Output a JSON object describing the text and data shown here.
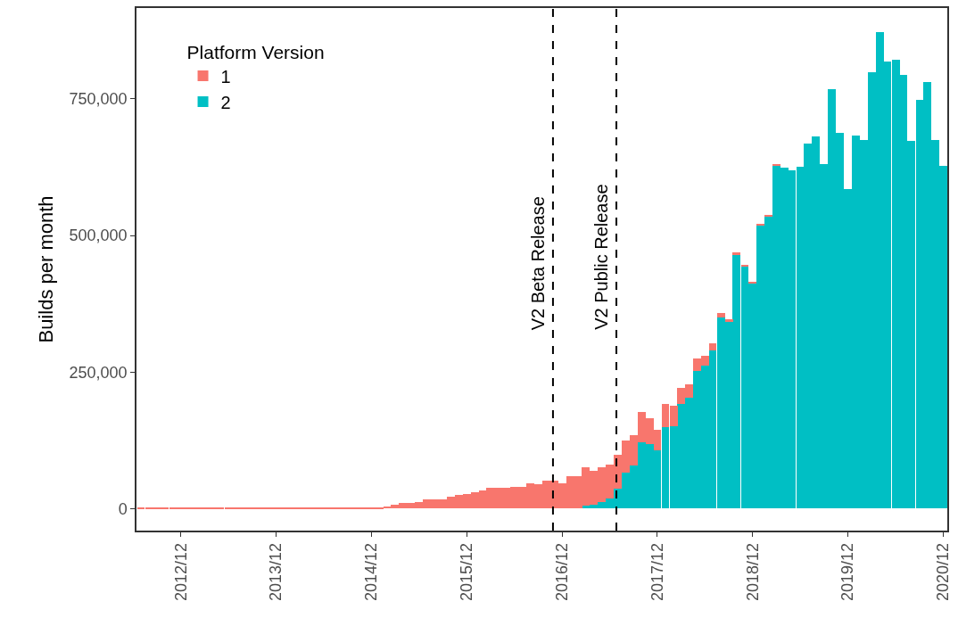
{
  "chart_data": {
    "type": "bar",
    "stacked": true,
    "ylabel": "Builds per month",
    "legend_title": "Platform Version",
    "legend": "top left",
    "x": [
      "2012-07",
      "2012-08",
      "2012-09",
      "2012-10",
      "2012-11",
      "2012-12",
      "2013-01",
      "2013-02",
      "2013-03",
      "2013-04",
      "2013-05",
      "2013-06",
      "2013-07",
      "2013-08",
      "2013-09",
      "2013-10",
      "2013-11",
      "2013-12",
      "2014-01",
      "2014-02",
      "2014-03",
      "2014-04",
      "2014-05",
      "2014-06",
      "2014-07",
      "2014-08",
      "2014-09",
      "2014-10",
      "2014-11",
      "2014-12",
      "2015-01",
      "2015-02",
      "2015-03",
      "2015-04",
      "2015-05",
      "2015-06",
      "2015-07",
      "2015-08",
      "2015-09",
      "2015-10",
      "2015-11",
      "2015-12",
      "2016-01",
      "2016-02",
      "2016-03",
      "2016-04",
      "2016-05",
      "2016-06",
      "2016-07",
      "2016-08",
      "2016-09",
      "2016-10",
      "2016-11",
      "2016-12",
      "2017-01",
      "2017-02",
      "2017-03",
      "2017-04",
      "2017-05",
      "2017-06",
      "2017-07",
      "2017-08",
      "2017-09",
      "2017-10",
      "2017-11",
      "2017-12",
      "2018-01",
      "2018-02",
      "2018-03",
      "2018-04",
      "2018-05",
      "2018-06",
      "2018-07",
      "2018-08",
      "2018-09",
      "2018-10",
      "2018-11",
      "2018-12",
      "2019-01",
      "2019-02",
      "2019-03",
      "2019-04",
      "2019-05",
      "2019-06",
      "2019-07",
      "2019-08",
      "2019-09",
      "2019-10",
      "2019-11",
      "2019-12",
      "2020-01",
      "2020-02",
      "2020-03",
      "2020-04",
      "2020-05",
      "2020-06",
      "2020-07",
      "2020-08",
      "2020-09",
      "2020-10",
      "2020-11",
      "2020-12"
    ],
    "series": [
      {
        "name": "2",
        "color": "#00bfc4",
        "values": [
          null,
          null,
          null,
          null,
          null,
          null,
          null,
          null,
          null,
          null,
          null,
          null,
          null,
          null,
          null,
          null,
          null,
          null,
          null,
          null,
          null,
          null,
          null,
          null,
          null,
          null,
          null,
          null,
          null,
          null,
          null,
          null,
          null,
          null,
          null,
          null,
          null,
          null,
          null,
          null,
          null,
          null,
          null,
          null,
          null,
          null,
          null,
          null,
          null,
          null,
          null,
          null,
          null,
          null,
          null,
          null,
          4900,
          8100,
          11400,
          19500,
          37400,
          66700,
          79700,
          122000,
          117700,
          107400,
          149700,
          151300,
          192000,
          203400,
          252200,
          262000,
          289600,
          349800,
          342000,
          463700,
          442500,
          411600,
          518000,
          535000,
          628000,
          624800,
          619900,
          626400,
          668700,
          681700,
          629700,
          768000,
          688200,
          584100,
          683300,
          675200,
          799000,
          872000,
          818000,
          821600,
          794000,
          673600,
          748000,
          781000,
          675200,
          628000
        ]
      },
      {
        "name": "1",
        "color": "#f8766d",
        "values": [
          1000,
          1000,
          1000,
          1000,
          1000,
          1000,
          1000,
          1000,
          1500,
          1500,
          1500,
          1500,
          1500,
          1500,
          1500,
          1500,
          1500,
          1500,
          1500,
          1500,
          1500,
          1500,
          1500,
          1500,
          1500,
          1500,
          2000,
          2000,
          3000,
          3000,
          3000,
          4500,
          7000,
          10300,
          10300,
          13000,
          17900,
          16300,
          17900,
          21700,
          25000,
          26600,
          30900,
          34200,
          39000,
          39000,
          39000,
          40700,
          40700,
          47200,
          45600,
          52100,
          51600,
          46200,
          59200,
          60300,
          71600,
          61900,
          65100,
          61900,
          61900,
          58600,
          55300,
          55300,
          48300,
          37400,
          42300,
          37400,
          29300,
          24400,
          22800,
          17800,
          13000,
          8200,
          4600,
          4900,
          3300,
          3300,
          3000,
          2000,
          1700,
          0,
          0,
          0,
          0,
          0,
          0,
          0,
          0,
          0,
          0,
          0,
          0,
          0,
          0,
          0,
          0,
          0,
          0,
          0,
          0,
          0
        ]
      }
    ],
    "xlim": [
      "2012-06-14",
      "2020-12-16"
    ],
    "xticks": [
      {
        "value": "2012-12",
        "label": "2012/12"
      },
      {
        "value": "2013-12",
        "label": "2013/12"
      },
      {
        "value": "2014-12",
        "label": "2014/12"
      },
      {
        "value": "2015-12",
        "label": "2015/12"
      },
      {
        "value": "2016-12",
        "label": "2016/12"
      },
      {
        "value": "2017-12",
        "label": "2017/12"
      },
      {
        "value": "2018-12",
        "label": "2018/12"
      },
      {
        "value": "2019-12",
        "label": "2019/12"
      },
      {
        "value": "2020-12",
        "label": "2020/12"
      }
    ],
    "ylim": [
      -40000,
      916000
    ],
    "yticks": [
      0,
      {
        "value": 250000,
        "label": "250,000"
      },
      {
        "value": 500000,
        "label": "500,000"
      },
      {
        "value": 750000,
        "label": "750,000"
      }
    ],
    "ref_lines": [
      {
        "axis": "x",
        "value": "2016-10-27",
        "label": "V2 Beta Release",
        "color": "#000000",
        "line_style": "dashed"
      },
      {
        "axis": "x",
        "value": "2017-06-27",
        "label": "V2 Public Release",
        "color": "#000000",
        "line_style": "dashed"
      }
    ]
  }
}
